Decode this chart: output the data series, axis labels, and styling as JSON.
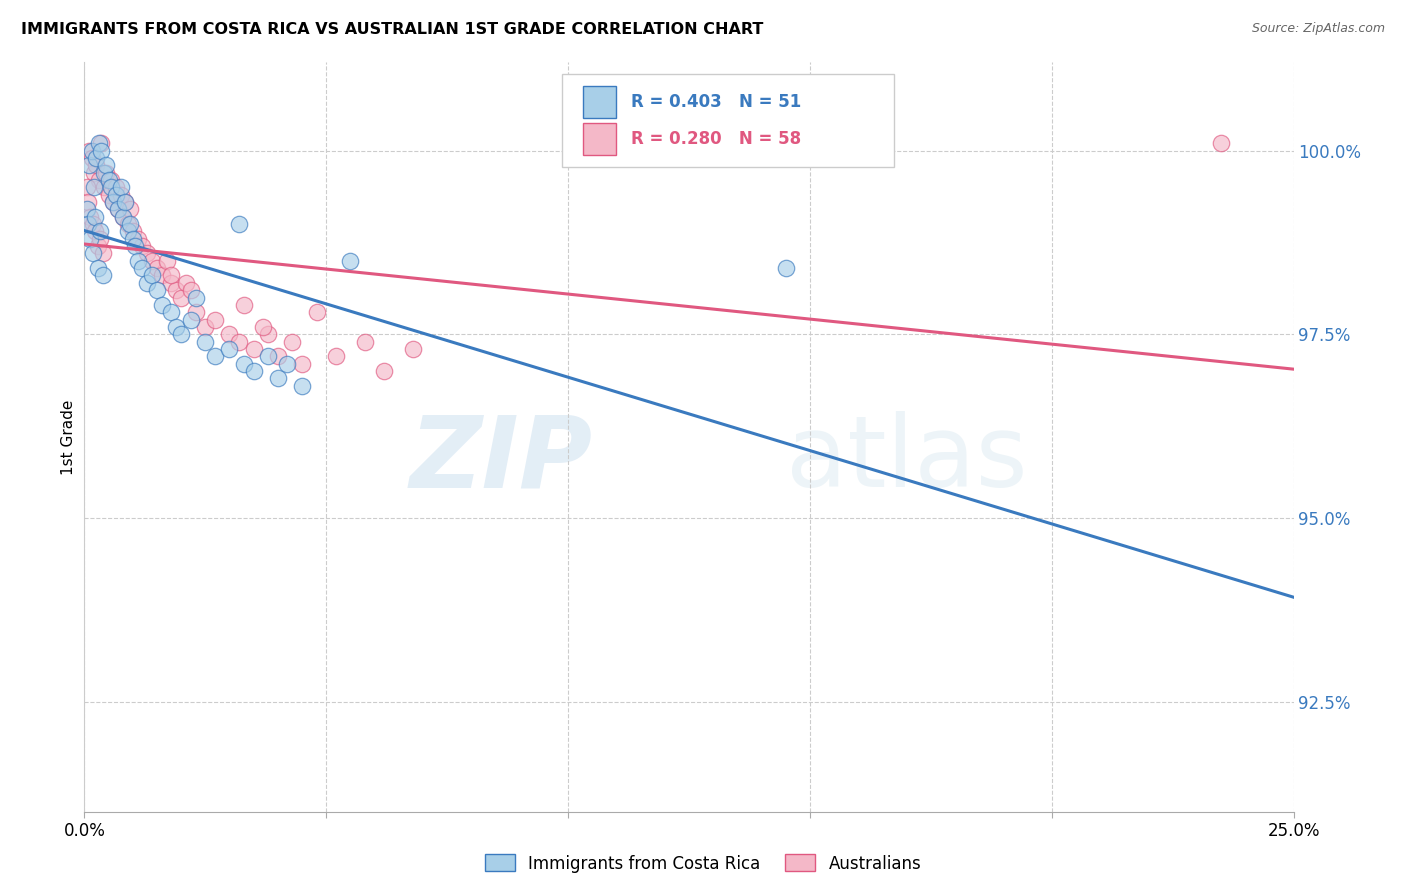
{
  "title": "IMMIGRANTS FROM COSTA RICA VS AUSTRALIAN 1ST GRADE CORRELATION CHART",
  "source": "Source: ZipAtlas.com",
  "ylabel": "1st Grade",
  "yticks": [
    92.5,
    95.0,
    97.5,
    100.0
  ],
  "ytick_labels": [
    "92.5%",
    "95.0%",
    "97.5%",
    "100.0%"
  ],
  "xlim": [
    0.0,
    25.0
  ],
  "ylim": [
    91.0,
    101.2
  ],
  "legend_blue_label": "Immigrants from Costa Rica",
  "legend_pink_label": "Australians",
  "R_blue": 0.403,
  "N_blue": 51,
  "R_pink": 0.28,
  "N_pink": 58,
  "blue_color": "#a8cfe8",
  "pink_color": "#f4b8c8",
  "trendline_blue": "#3a7abf",
  "trendline_pink": "#e05880",
  "watermark_zip": "ZIP",
  "watermark_atlas": "atlas",
  "blue_points_x": [
    0.1,
    0.15,
    0.2,
    0.25,
    0.3,
    0.35,
    0.4,
    0.45,
    0.5,
    0.55,
    0.6,
    0.65,
    0.7,
    0.75,
    0.8,
    0.85,
    0.9,
    0.95,
    1.0,
    1.05,
    1.1,
    1.2,
    1.3,
    1.4,
    1.5,
    1.6,
    1.8,
    1.9,
    2.0,
    2.2,
    2.5,
    2.7,
    3.0,
    3.3,
    3.5,
    3.8,
    4.0,
    4.2,
    4.5,
    0.05,
    0.08,
    0.12,
    0.18,
    0.22,
    0.28,
    0.32,
    0.38,
    2.3,
    14.5,
    5.5,
    3.2
  ],
  "blue_points_y": [
    99.8,
    100.0,
    99.5,
    99.9,
    100.1,
    100.0,
    99.7,
    99.8,
    99.6,
    99.5,
    99.3,
    99.4,
    99.2,
    99.5,
    99.1,
    99.3,
    98.9,
    99.0,
    98.8,
    98.7,
    98.5,
    98.4,
    98.2,
    98.3,
    98.1,
    97.9,
    97.8,
    97.6,
    97.5,
    97.7,
    97.4,
    97.2,
    97.3,
    97.1,
    97.0,
    97.2,
    96.9,
    97.1,
    96.8,
    99.2,
    99.0,
    98.8,
    98.6,
    99.1,
    98.4,
    98.9,
    98.3,
    98.0,
    98.4,
    98.5,
    99.0
  ],
  "pink_points_x": [
    0.1,
    0.15,
    0.2,
    0.25,
    0.3,
    0.35,
    0.4,
    0.45,
    0.5,
    0.55,
    0.6,
    0.65,
    0.7,
    0.75,
    0.8,
    0.85,
    0.9,
    0.95,
    1.0,
    1.1,
    1.2,
    1.3,
    1.4,
    1.5,
    1.6,
    1.7,
    1.8,
    1.9,
    2.0,
    2.1,
    2.3,
    2.5,
    2.7,
    3.0,
    3.2,
    3.5,
    3.8,
    4.0,
    4.3,
    4.5,
    0.05,
    0.08,
    0.12,
    0.18,
    0.22,
    0.28,
    0.32,
    0.38,
    1.8,
    2.2,
    3.3,
    3.7,
    4.8,
    5.2,
    5.8,
    6.2,
    6.8,
    23.5
  ],
  "pink_points_y": [
    100.0,
    99.9,
    99.7,
    99.8,
    99.6,
    100.1,
    99.5,
    99.7,
    99.4,
    99.6,
    99.3,
    99.5,
    99.2,
    99.4,
    99.1,
    99.3,
    99.0,
    99.2,
    98.9,
    98.8,
    98.7,
    98.6,
    98.5,
    98.4,
    98.3,
    98.5,
    98.2,
    98.1,
    98.0,
    98.2,
    97.8,
    97.6,
    97.7,
    97.5,
    97.4,
    97.3,
    97.5,
    97.2,
    97.4,
    97.1,
    99.5,
    99.3,
    99.1,
    99.0,
    98.9,
    98.7,
    98.8,
    98.6,
    98.3,
    98.1,
    97.9,
    97.6,
    97.8,
    97.2,
    97.4,
    97.0,
    97.3,
    100.1
  ]
}
